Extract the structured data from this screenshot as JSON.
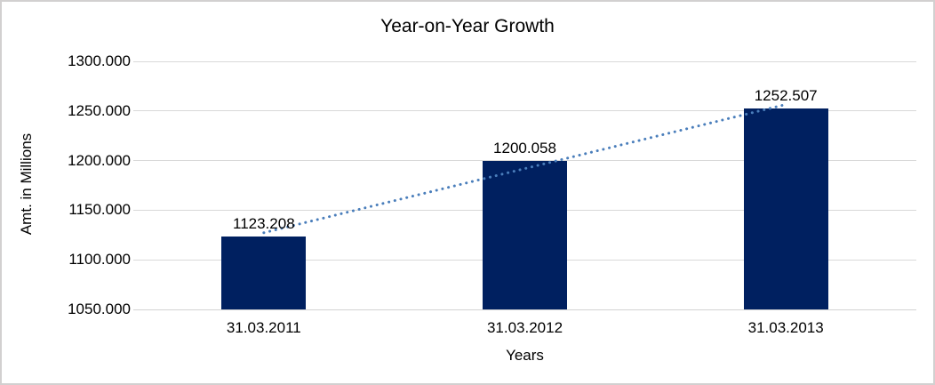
{
  "chart": {
    "title": "Year-on-Year Growth",
    "x_axis_title": "Years",
    "y_axis_title": "Amt. in Millions",
    "colors": {
      "bar_fill": "#002060",
      "trendline": "#4a7ebb",
      "gridline": "#d9d9d9",
      "border": "#d2d0d0",
      "text": "#000000",
      "background": "#ffffff"
    }
  },
  "chart_data": {
    "type": "bar",
    "title": "Year-on-Year Growth",
    "xlabel": "Years",
    "ylabel": "Amt. in Millions",
    "categories": [
      "31.03.2011",
      "31.03.2012",
      "31.03.2013"
    ],
    "values": [
      1123.208,
      1200.058,
      1252.507
    ],
    "data_labels": [
      "1123.208",
      "1200.058",
      "1252.507"
    ],
    "y_tick_labels": [
      "1050.000",
      "1100.000",
      "1150.000",
      "1200.000",
      "1250.000",
      "1300.000"
    ],
    "y_tick_values": [
      1050,
      1100,
      1150,
      1200,
      1250,
      1300
    ],
    "ylim": [
      1050,
      1300
    ],
    "grid": true,
    "legend": false,
    "trendline": {
      "type": "linear",
      "style": "dotted",
      "fitted_values": [
        1127.275,
        1191.924,
        1256.574
      ]
    }
  }
}
